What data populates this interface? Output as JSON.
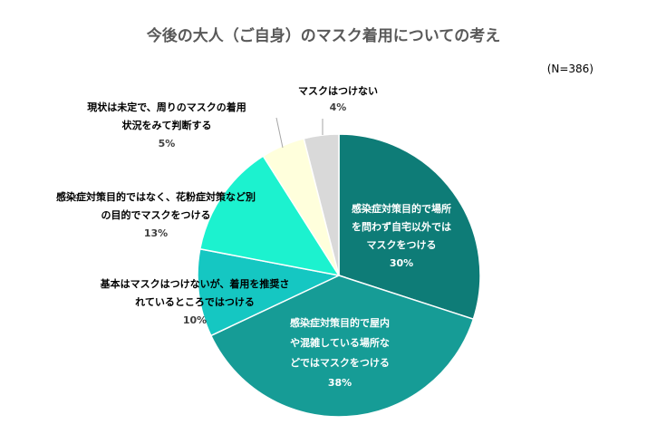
{
  "chart_data": {
    "type": "pie",
    "title": "今後の大人（ご自身）のマスク着用についての考え",
    "note": "(N=386)",
    "slices": [
      {
        "lines": [
          "感染症対策目的で場所",
          "を問わず自宅以外では",
          "マスクをつける"
        ],
        "value": 30,
        "pct_label": "30%",
        "color": "#0E7C77",
        "label_position": "inside"
      },
      {
        "lines": [
          "感染症対策目的で屋内",
          "や混雑している場所な",
          "どではマスクをつける"
        ],
        "value": 38,
        "pct_label": "38%",
        "color": "#169C96",
        "label_position": "inside"
      },
      {
        "lines": [
          "基本はマスクはつけないが、着用を推奨さ",
          "れているところではつける"
        ],
        "value": 10,
        "pct_label": "10%",
        "color": "#15C7C2",
        "label_position": "outside"
      },
      {
        "lines": [
          "感染症対策目的ではなく、花粉症対策など別",
          "の目的でマスクをつける"
        ],
        "value": 13,
        "pct_label": "13%",
        "color": "#1CF2CF",
        "label_position": "outside"
      },
      {
        "lines": [
          "現状は未定で、周りのマスクの着用",
          "状況をみて判断する"
        ],
        "value": 5,
        "pct_label": "5%",
        "color": "#FFFFDC",
        "label_position": "outside"
      },
      {
        "lines": [
          "マスクはつけない"
        ],
        "value": 4,
        "pct_label": "4%",
        "color": "#D9D9D9",
        "label_position": "outside"
      }
    ],
    "legend": "none"
  }
}
